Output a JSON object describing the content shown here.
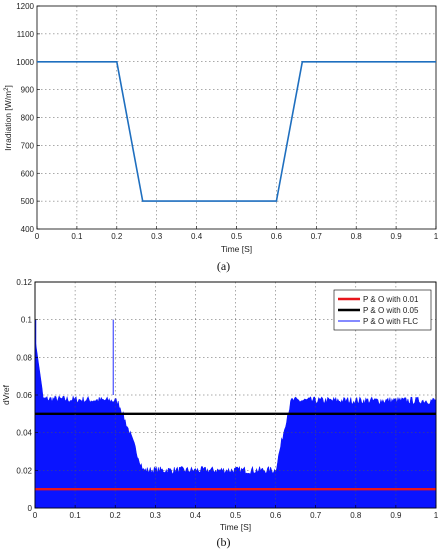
{
  "chart_data": [
    {
      "type": "line",
      "caption": "(a)",
      "xlabel": "Time [S]",
      "ylabel": "Irradiation [W/m",
      "ylabel_sup": "2",
      "ylabel_close": "]",
      "xlim": [
        0,
        1
      ],
      "ylim": [
        400,
        1200
      ],
      "grid": true,
      "x_ticks": [
        "0",
        "0.1",
        "0.2",
        "0.3",
        "0.4",
        "0.5",
        "0.6",
        "0.7",
        "0.8",
        "0.9",
        "1"
      ],
      "y_ticks": [
        "400",
        "500",
        "600",
        "700",
        "800",
        "900",
        "1000",
        "1100",
        "1200"
      ],
      "series": [
        {
          "color": "#1f6fbf",
          "x": [
            0,
            0.2,
            0.265,
            0.6,
            0.665,
            1
          ],
          "y": [
            1000,
            1000,
            500,
            500,
            1000,
            1000
          ]
        }
      ]
    },
    {
      "type": "line",
      "caption": "(b)",
      "xlabel": "Time [S]",
      "ylabel": "dVref",
      "xlim": [
        0,
        1
      ],
      "ylim": [
        0,
        0.12
      ],
      "grid": true,
      "legend_position": "top-right",
      "x_ticks": [
        "0",
        "0.1",
        "0.2",
        "0.3",
        "0.4",
        "0.5",
        "0.6",
        "0.7",
        "0.8",
        "0.9",
        "1"
      ],
      "y_ticks": [
        "0",
        "0.02",
        "0.04",
        "0.06",
        "0.08",
        "0.1",
        "0.12"
      ],
      "series": [
        {
          "name": "P & O with 0.01",
          "color": "#e8161b",
          "x": [
            0,
            1
          ],
          "y": [
            0.01,
            0.01
          ]
        },
        {
          "name": "P & O with 0.05",
          "color": "#000000",
          "x": [
            0,
            1
          ],
          "y": [
            0.05,
            0.05
          ]
        },
        {
          "name": "P & O with FLC",
          "color": "#0a14ff",
          "x": [
            0,
            0.2,
            0.21,
            0.27,
            0.6,
            0.63,
            0.64,
            1
          ],
          "y_upper": [
            0.058,
            0.057,
            0.055,
            0.02,
            0.02,
            0.05,
            0.057,
            0.057
          ],
          "y_lower": [
            0,
            0,
            0,
            0,
            0,
            0,
            0,
            0
          ],
          "spikes": [
            {
              "x": 0.002,
              "y": 0.1
            },
            {
              "x": 0.195,
              "y": 0.1
            }
          ]
        }
      ]
    }
  ]
}
